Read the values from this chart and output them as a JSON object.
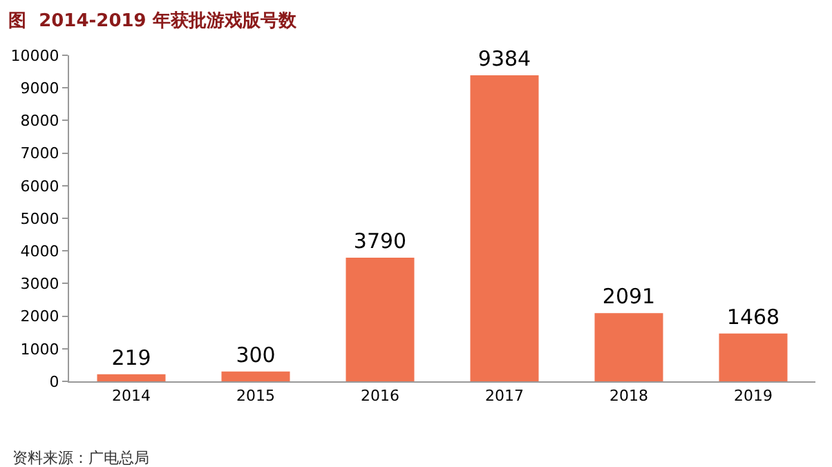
{
  "chart_data": {
    "type": "bar",
    "title": "图  2014-2019 年获批游戏版号数",
    "categories": [
      "2014",
      "2015",
      "2016",
      "2017",
      "2018",
      "2019"
    ],
    "values": [
      219,
      300,
      3790,
      9384,
      2091,
      1468
    ],
    "color": "#f07350",
    "ylim": [
      0,
      10000
    ],
    "yticks": [
      0,
      1000,
      2000,
      3000,
      4000,
      5000,
      6000,
      7000,
      8000,
      9000,
      10000
    ],
    "grid": false,
    "legend": false,
    "data_labels": true,
    "annotations": [
      "资料来源：广电总局"
    ]
  }
}
